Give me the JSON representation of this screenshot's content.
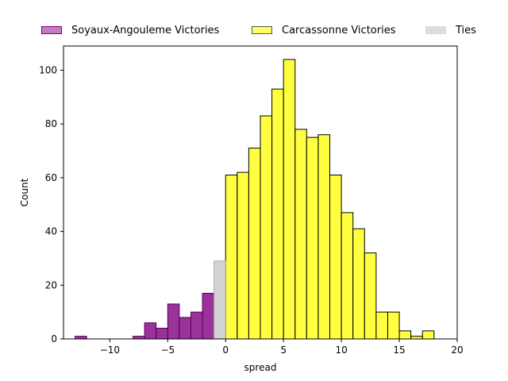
{
  "chart_data": {
    "type": "bar",
    "title": "",
    "xlabel": "spread",
    "ylabel": "Count",
    "xlim": [
      -14,
      20
    ],
    "ylim": [
      0,
      109
    ],
    "x_ticks": [
      -10,
      -5,
      0,
      5,
      10,
      15,
      20
    ],
    "y_ticks": [
      0,
      20,
      40,
      60,
      80,
      100
    ],
    "x_tick_labels": [
      "−10",
      "−5",
      "0",
      "5",
      "10",
      "15",
      "20"
    ],
    "y_tick_labels": [
      "0",
      "20",
      "40",
      "60",
      "80",
      "100"
    ],
    "grid": false,
    "legend_position": "top",
    "bin_width": 1,
    "series": [
      {
        "name": "Soyaux-Angouleme Victories",
        "color": "#800080",
        "bins": [
          {
            "x0": -13,
            "x1": -12,
            "count": 1
          },
          {
            "x0": -12,
            "x1": -11,
            "count": 0
          },
          {
            "x0": -11,
            "x1": -10,
            "count": 0
          },
          {
            "x0": -10,
            "x1": -9,
            "count": 0
          },
          {
            "x0": -9,
            "x1": -8,
            "count": 0
          },
          {
            "x0": -8,
            "x1": -7,
            "count": 1
          },
          {
            "x0": -7,
            "x1": -6,
            "count": 6
          },
          {
            "x0": -6,
            "x1": -5,
            "count": 4
          },
          {
            "x0": -5,
            "x1": -4,
            "count": 13
          },
          {
            "x0": -4,
            "x1": -3,
            "count": 8
          },
          {
            "x0": -3,
            "x1": -2,
            "count": 10
          },
          {
            "x0": -2,
            "x1": -1,
            "count": 17
          }
        ]
      },
      {
        "name": "Carcassonne Victories",
        "color": "#ffff00",
        "bins": [
          {
            "x0": 0,
            "x1": 1,
            "count": 61
          },
          {
            "x0": 1,
            "x1": 2,
            "count": 62
          },
          {
            "x0": 2,
            "x1": 3,
            "count": 71
          },
          {
            "x0": 3,
            "x1": 4,
            "count": 83
          },
          {
            "x0": 4,
            "x1": 5,
            "count": 93
          },
          {
            "x0": 5,
            "x1": 6,
            "count": 104
          },
          {
            "x0": 6,
            "x1": 7,
            "count": 78
          },
          {
            "x0": 7,
            "x1": 8,
            "count": 75
          },
          {
            "x0": 8,
            "x1": 9,
            "count": 76
          },
          {
            "x0": 9,
            "x1": 10,
            "count": 61
          },
          {
            "x0": 10,
            "x1": 11,
            "count": 47
          },
          {
            "x0": 11,
            "x1": 12,
            "count": 41
          },
          {
            "x0": 12,
            "x1": 13,
            "count": 32
          },
          {
            "x0": 13,
            "x1": 14,
            "count": 10
          },
          {
            "x0": 14,
            "x1": 15,
            "count": 10
          },
          {
            "x0": 15,
            "x1": 16,
            "count": 3
          },
          {
            "x0": 16,
            "x1": 17,
            "count": 1
          },
          {
            "x0": 17,
            "x1": 18,
            "count": 3
          }
        ]
      },
      {
        "name": "Ties",
        "color": "#c0c0c0",
        "bins": [
          {
            "x0": -1,
            "x1": 0,
            "count": 29
          }
        ]
      }
    ]
  }
}
